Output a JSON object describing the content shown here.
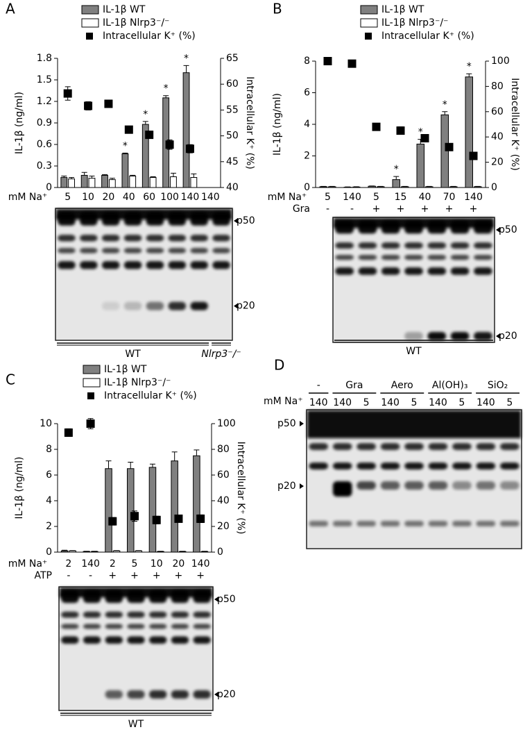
{
  "chart_data": [
    {
      "type": "bar",
      "panel_label": "A",
      "ylabel": "IL-1β (ng/ml)",
      "y2label": "Intracellular K⁺ (%)",
      "x_label": "mM Na⁺",
      "categories": [
        5,
        10,
        20,
        40,
        60,
        100,
        140,
        140
      ],
      "series": [
        {
          "name": "IL-1β WT",
          "color": "#808080",
          "values": [
            0.14,
            0.17,
            0.17,
            0.47,
            0.88,
            1.25,
            1.6,
            null
          ],
          "errors": [
            0.02,
            0.04,
            0.01,
            0.01,
            0.04,
            0.03,
            0.1,
            null
          ]
        },
        {
          "name": "IL-1β Nlrp3⁻/⁻",
          "color": "#ffffff",
          "values": [
            0.12,
            0.13,
            0.11,
            0.16,
            0.14,
            0.15,
            0.14,
            null
          ],
          "errors": [
            0.02,
            0.03,
            0.02,
            0.01,
            0.01,
            0.05,
            0.05,
            null
          ]
        },
        {
          "name": "Intracellular K⁺ (%)",
          "color": "#000000",
          "axis": "y2",
          "marker": "square",
          "values": [
            58.2,
            55.8,
            56.2,
            51.2,
            50.2,
            48.3,
            47.5,
            null
          ],
          "errors": [
            1.3,
            0.8,
            0.3,
            0.6,
            0.7,
            0.9,
            0.8,
            null
          ]
        }
      ],
      "significance": [
        null,
        null,
        null,
        "*",
        "*",
        "*",
        "*",
        null
      ],
      "ylim": [
        0,
        1.8
      ],
      "yticks": [
        0,
        0.3,
        0.6,
        0.9,
        1.2,
        1.5,
        1.8
      ],
      "y2lim": [
        40,
        65
      ],
      "y2ticks": [
        40,
        45,
        50,
        55,
        60,
        65
      ],
      "blot": {
        "markers": [
          "p50",
          "p20"
        ],
        "genotypes": [
          "WT",
          "Nlrp3⁻/⁻"
        ]
      }
    },
    {
      "type": "bar",
      "panel_label": "B",
      "ylabel": "IL-1β (ng/ml)",
      "y2label": "Intracellular K⁺ (%)",
      "x_label": "mM Na⁺",
      "categories": [
        5,
        140,
        5,
        15,
        40,
        70,
        140
      ],
      "treatment_label": "Gra",
      "treatment": [
        "-",
        "-",
        "+",
        "+",
        "+",
        "+",
        "+"
      ],
      "series": [
        {
          "name": "IL-1β WT",
          "color": "#808080",
          "values": [
            0.05,
            0.02,
            0.08,
            0.5,
            2.75,
            4.6,
            7.0
          ],
          "errors": [
            0.02,
            0.02,
            0.02,
            0.2,
            0.3,
            0.2,
            0.2
          ]
        },
        {
          "name": "IL-1β Nlrp3⁻/⁻",
          "color": "#ffffff",
          "values": [
            0.05,
            0.03,
            0.05,
            0.05,
            0.05,
            0.05,
            0.05
          ],
          "errors": [
            0.02,
            0.02,
            0.02,
            0.02,
            0.02,
            0.02,
            0.02
          ]
        },
        {
          "name": "Intracellular K⁺ (%)",
          "color": "#000000",
          "axis": "y2",
          "marker": "square",
          "values": [
            100,
            98,
            48,
            45,
            39,
            32,
            25
          ],
          "errors": [
            3,
            1,
            2,
            3,
            1,
            1,
            3
          ]
        }
      ],
      "significance": [
        null,
        null,
        null,
        "*",
        "*",
        "*",
        "*"
      ],
      "ylim": [
        0,
        8
      ],
      "yticks": [
        0,
        2,
        4,
        6,
        8
      ],
      "y2lim": [
        0,
        100
      ],
      "y2ticks": [
        0,
        20,
        40,
        60,
        80,
        100
      ],
      "blot": {
        "markers": [
          "p50",
          "p20"
        ],
        "genotypes": [
          "WT"
        ]
      }
    },
    {
      "type": "bar",
      "panel_label": "C",
      "ylabel": "IL-1β (ng/ml)",
      "y2label": "Intracellular K⁺ (%)",
      "x_label": "mM Na⁺",
      "categories": [
        2,
        140,
        2,
        5,
        10,
        20,
        140
      ],
      "treatment_label": "ATP",
      "treatment": [
        "-",
        "-",
        "+",
        "+",
        "+",
        "+",
        "+"
      ],
      "series": [
        {
          "name": "IL-1β WT",
          "color": "#808080",
          "values": [
            0.1,
            0.05,
            6.5,
            6.5,
            6.6,
            7.1,
            7.5
          ],
          "errors": [
            0.05,
            0.02,
            0.6,
            0.5,
            0.25,
            0.7,
            0.45
          ]
        },
        {
          "name": "IL-1β Nlrp3⁻/⁻",
          "color": "#ffffff",
          "values": [
            0.1,
            0.05,
            0.1,
            0.1,
            0.05,
            0.05,
            0.05
          ],
          "errors": [
            0.02,
            0.02,
            0.02,
            0.02,
            0.02,
            0.02,
            0.02
          ]
        },
        {
          "name": "Intracellular K⁺ (%)",
          "color": "#000000",
          "axis": "y2",
          "marker": "square",
          "values": [
            93,
            100,
            24,
            28,
            25,
            26,
            26
          ],
          "errors": [
            3,
            4,
            3,
            4,
            3,
            1,
            3
          ]
        }
      ],
      "significance": [
        null,
        null,
        null,
        null,
        null,
        null,
        null
      ],
      "ylim": [
        0,
        10
      ],
      "yticks": [
        0,
        2,
        4,
        6,
        8,
        10
      ],
      "y2lim": [
        0,
        100
      ],
      "y2ticks": [
        0,
        20,
        40,
        60,
        80,
        100
      ],
      "blot": {
        "markers": [
          "p50",
          "p20"
        ],
        "genotypes": [
          "WT"
        ]
      }
    }
  ],
  "panel_d": {
    "panel_label": "D",
    "x_label": "mM Na⁺",
    "groups": [
      {
        "name": "-",
        "lanes": [
          140
        ]
      },
      {
        "name": "Gra",
        "lanes": [
          140,
          5
        ]
      },
      {
        "name": "Aero",
        "lanes": [
          140,
          5
        ]
      },
      {
        "name": "Al(OH)₃",
        "lanes": [
          140,
          5
        ]
      },
      {
        "name": "SiO₂",
        "lanes": [
          140,
          5
        ]
      }
    ],
    "markers": [
      "p50",
      "p20"
    ]
  }
}
